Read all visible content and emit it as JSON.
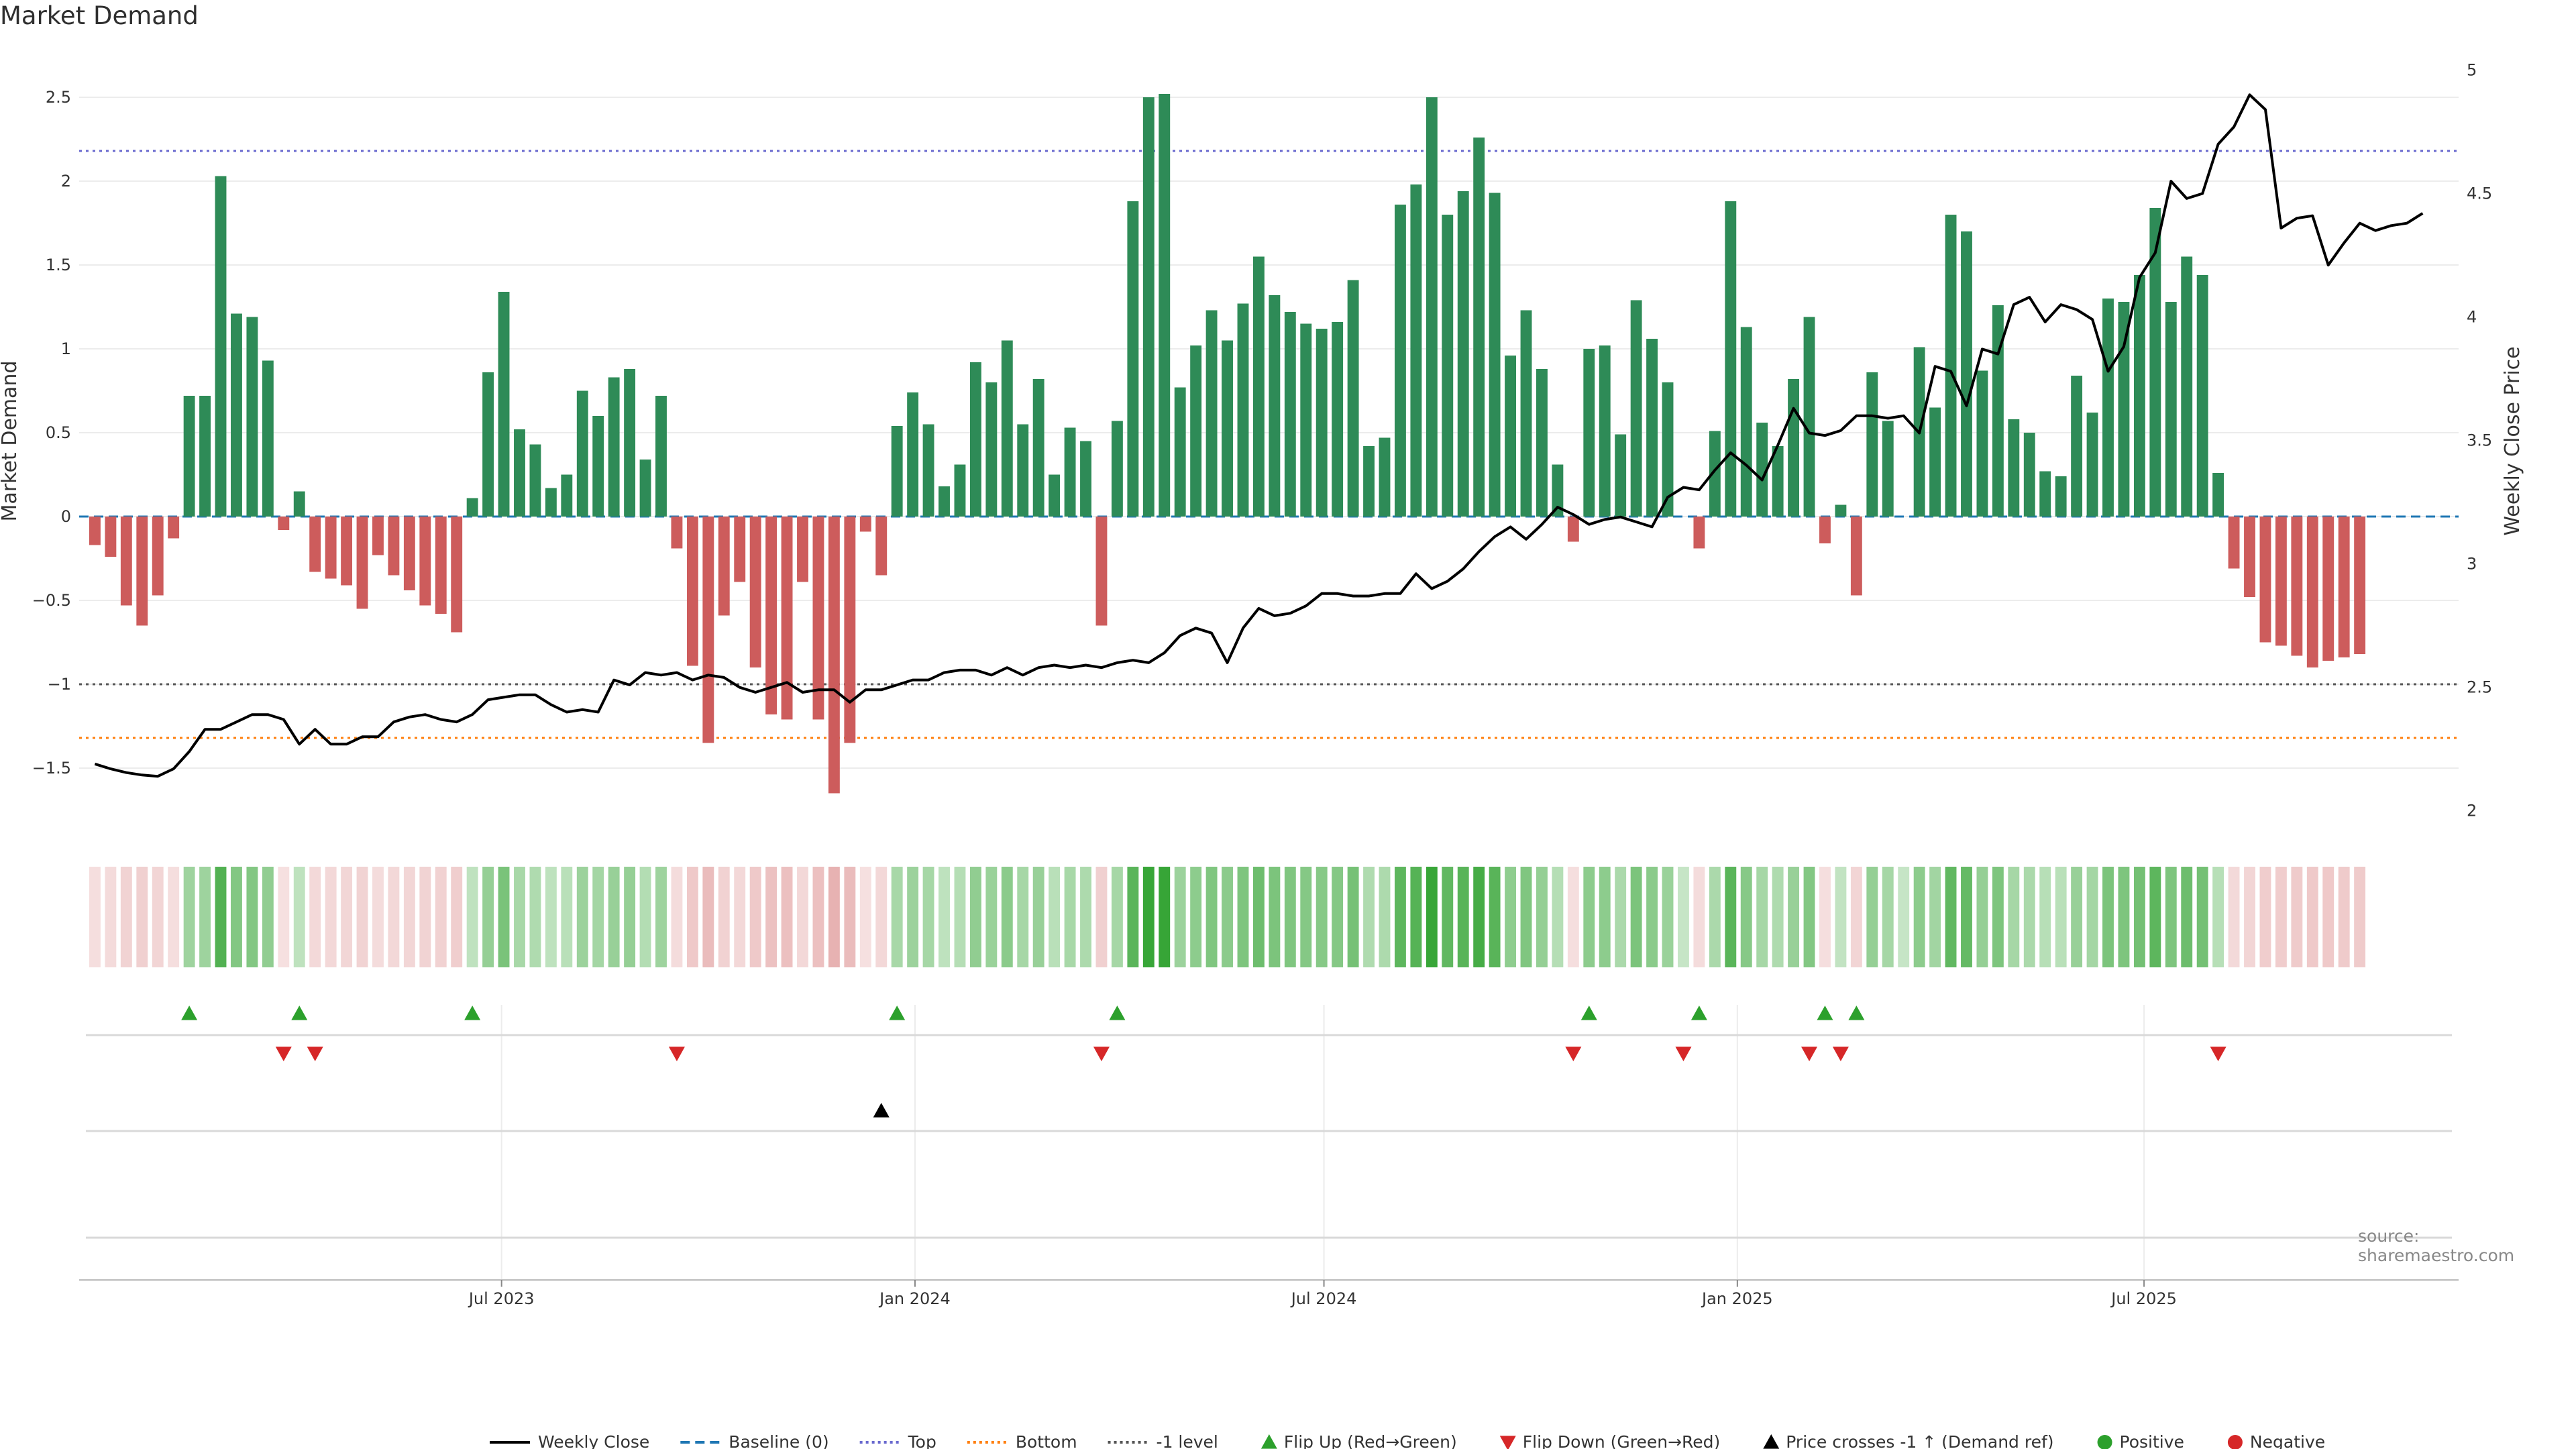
{
  "chart_data": {
    "title": "Market Demand",
    "source": "source: sharemaestro.com",
    "type": "bar",
    "ylabel": "Market Demand",
    "y2label": "Weekly Close Price",
    "ylim": [
      -1.88,
      2.78
    ],
    "y2lim": [
      1.915,
      5.08
    ],
    "yticks": [
      2.5,
      2,
      1.5,
      1,
      0.5,
      0,
      -0.5,
      -1,
      -1.5
    ],
    "ytick_labels": [
      "2.5",
      "2",
      "1.5",
      "1",
      "0.5",
      "0",
      "−0.5",
      "−1",
      "−1.5"
    ],
    "y2ticks": [
      5,
      4.5,
      4,
      3.5,
      3,
      2.5,
      2
    ],
    "y2tick_labels": [
      "5",
      "4.5",
      "4",
      "3.5",
      "3",
      "2.5",
      "2"
    ],
    "xlim": [
      "2022-12-25",
      "2025-11-18"
    ],
    "xticks": [
      {
        "date": "2023-07-01",
        "label": "Jul 2023"
      },
      {
        "date": "2024-01-01",
        "label": "Jan 2024"
      },
      {
        "date": "2024-07-01",
        "label": "Jul 2024"
      },
      {
        "date": "2025-01-01",
        "label": "Jan 2025"
      },
      {
        "date": "2025-07-01",
        "label": "Jul 2025"
      }
    ],
    "first_week": "2023-01-01",
    "levels": {
      "top": 2.18,
      "bottom": -1.32,
      "minus_one": -1.0,
      "baseline": 0
    },
    "demand": [
      -0.17,
      -0.24,
      -0.53,
      -0.65,
      -0.47,
      -0.13,
      0.72,
      0.72,
      2.03,
      1.21,
      1.19,
      0.93,
      -0.08,
      0.15,
      -0.33,
      -0.37,
      -0.41,
      -0.55,
      -0.23,
      -0.35,
      -0.44,
      -0.53,
      -0.58,
      -0.69,
      0.11,
      0.86,
      1.34,
      0.52,
      0.43,
      0.17,
      0.25,
      0.75,
      0.6,
      0.83,
      0.88,
      0.34,
      0.72,
      -0.19,
      -0.89,
      -1.35,
      -0.59,
      -0.39,
      -0.9,
      -1.18,
      -1.21,
      -0.39,
      -1.21,
      -1.65,
      -1.35,
      -0.09,
      -0.35,
      0.54,
      0.74,
      0.55,
      0.18,
      0.31,
      0.92,
      0.8,
      1.05,
      0.55,
      0.82,
      0.25,
      0.53,
      0.45,
      -0.65,
      0.57,
      1.88,
      2.5,
      2.52,
      0.77,
      1.02,
      1.23,
      1.05,
      1.27,
      1.55,
      1.32,
      1.22,
      1.15,
      1.12,
      1.16,
      1.41,
      0.42,
      0.47,
      1.86,
      1.98,
      2.5,
      1.8,
      1.94,
      2.26,
      1.93,
      0.96,
      1.23,
      0.88,
      0.31,
      -0.15,
      1.0,
      1.02,
      0.49,
      1.29,
      1.06,
      0.8,
      0.0,
      -0.19,
      0.51,
      1.88,
      1.13,
      0.56,
      0.42,
      0.82,
      1.19,
      -0.16,
      0.07,
      -0.47,
      0.86,
      0.57,
      0.0,
      1.01,
      0.65,
      1.8,
      1.7,
      0.87,
      1.26,
      0.58,
      0.5,
      0.27,
      0.24,
      0.84,
      0.62,
      1.3,
      1.28,
      1.44,
      1.84,
      1.28,
      1.55,
      1.44,
      0.26,
      -0.31,
      -0.48,
      -0.75,
      -0.77,
      -0.83,
      -0.9,
      -0.86,
      -0.84,
      -0.82
    ],
    "price_series_name": "Weekly Close",
    "price": [
      2.19,
      2.17,
      2.155,
      2.145,
      2.14,
      2.17,
      2.24,
      2.33,
      2.33,
      2.36,
      2.39,
      2.39,
      2.37,
      2.27,
      2.33,
      2.27,
      2.27,
      2.3,
      2.3,
      2.36,
      2.38,
      2.39,
      2.37,
      2.36,
      2.39,
      2.45,
      2.46,
      2.47,
      2.47,
      2.43,
      2.4,
      2.41,
      2.4,
      2.53,
      2.51,
      2.56,
      2.55,
      2.56,
      2.53,
      2.55,
      2.54,
      2.5,
      2.48,
      2.5,
      2.52,
      2.48,
      2.49,
      2.49,
      2.44,
      2.49,
      2.49,
      2.51,
      2.53,
      2.53,
      2.56,
      2.57,
      2.57,
      2.55,
      2.58,
      2.55,
      2.58,
      2.59,
      2.58,
      2.59,
      2.58,
      2.6,
      2.61,
      2.6,
      2.64,
      2.71,
      2.74,
      2.72,
      2.6,
      2.74,
      2.82,
      2.79,
      2.8,
      2.83,
      2.88,
      2.88,
      2.87,
      2.87,
      2.88,
      2.88,
      2.96,
      2.9,
      2.93,
      2.98,
      3.05,
      3.11,
      3.15,
      3.1,
      3.16,
      3.23,
      3.2,
      3.16,
      3.18,
      3.19,
      3.17,
      3.15,
      3.27,
      3.31,
      3.3,
      3.38,
      3.45,
      3.4,
      3.34,
      3.48,
      3.63,
      3.53,
      3.52,
      3.54,
      3.6,
      3.6,
      3.59,
      3.6,
      3.53,
      3.8,
      3.78,
      3.64,
      3.87,
      3.85,
      4.05,
      4.08,
      3.98,
      4.05,
      4.03,
      3.99,
      3.78,
      3.88,
      4.16,
      4.26,
      4.55,
      4.48,
      4.5,
      4.7,
      4.77,
      4.9,
      4.84,
      4.36,
      4.4,
      4.41,
      4.21,
      4.3,
      4.38,
      4.35,
      4.37,
      4.38,
      4.42
    ],
    "flip_up_weeks": [
      6,
      13,
      24,
      51,
      65,
      95,
      102,
      110,
      112
    ],
    "flip_down_weeks": [
      12,
      14,
      37,
      64,
      94,
      101,
      109,
      111,
      135
    ],
    "price_cross_weeks": [
      50
    ],
    "legend": [
      {
        "key": "weekly_close",
        "label": "Weekly Close",
        "kind": "line-solid",
        "color": "#000000"
      },
      {
        "key": "baseline",
        "label": "Baseline (0)",
        "kind": "line-dashed",
        "color": "#1f77b4"
      },
      {
        "key": "top",
        "label": "Top",
        "kind": "line-dotted",
        "color": "#6a6acf"
      },
      {
        "key": "bottom",
        "label": "Bottom",
        "kind": "line-dotted",
        "color": "#ff7f0e"
      },
      {
        "key": "minus_one",
        "label": "-1 level",
        "kind": "line-dotted",
        "color": "#555555"
      },
      {
        "key": "flip_up",
        "label": "Flip Up (Red→Green)",
        "kind": "triangle-up",
        "color": "#2ca02c"
      },
      {
        "key": "flip_down",
        "label": "Flip Down (Green→Red)",
        "kind": "triangle-down",
        "color": "#d62728"
      },
      {
        "key": "price_cross",
        "label": "Price crosses -1 ↑ (Demand ref)",
        "kind": "triangle-up",
        "color": "#000000"
      },
      {
        "key": "positive",
        "label": "Positive",
        "kind": "dot",
        "color": "#2ca02c"
      },
      {
        "key": "negative",
        "label": "Negative",
        "kind": "dot",
        "color": "#d62728"
      }
    ]
  },
  "colors": {
    "positive_bar": "#2e8b57",
    "negative_bar": "#cd5c5c",
    "strip_positive": "#2ca02c",
    "strip_negative": "#cd5c5c",
    "flip_up": "#2ca02c",
    "flip_down": "#d62728",
    "grid": "#ececec"
  }
}
